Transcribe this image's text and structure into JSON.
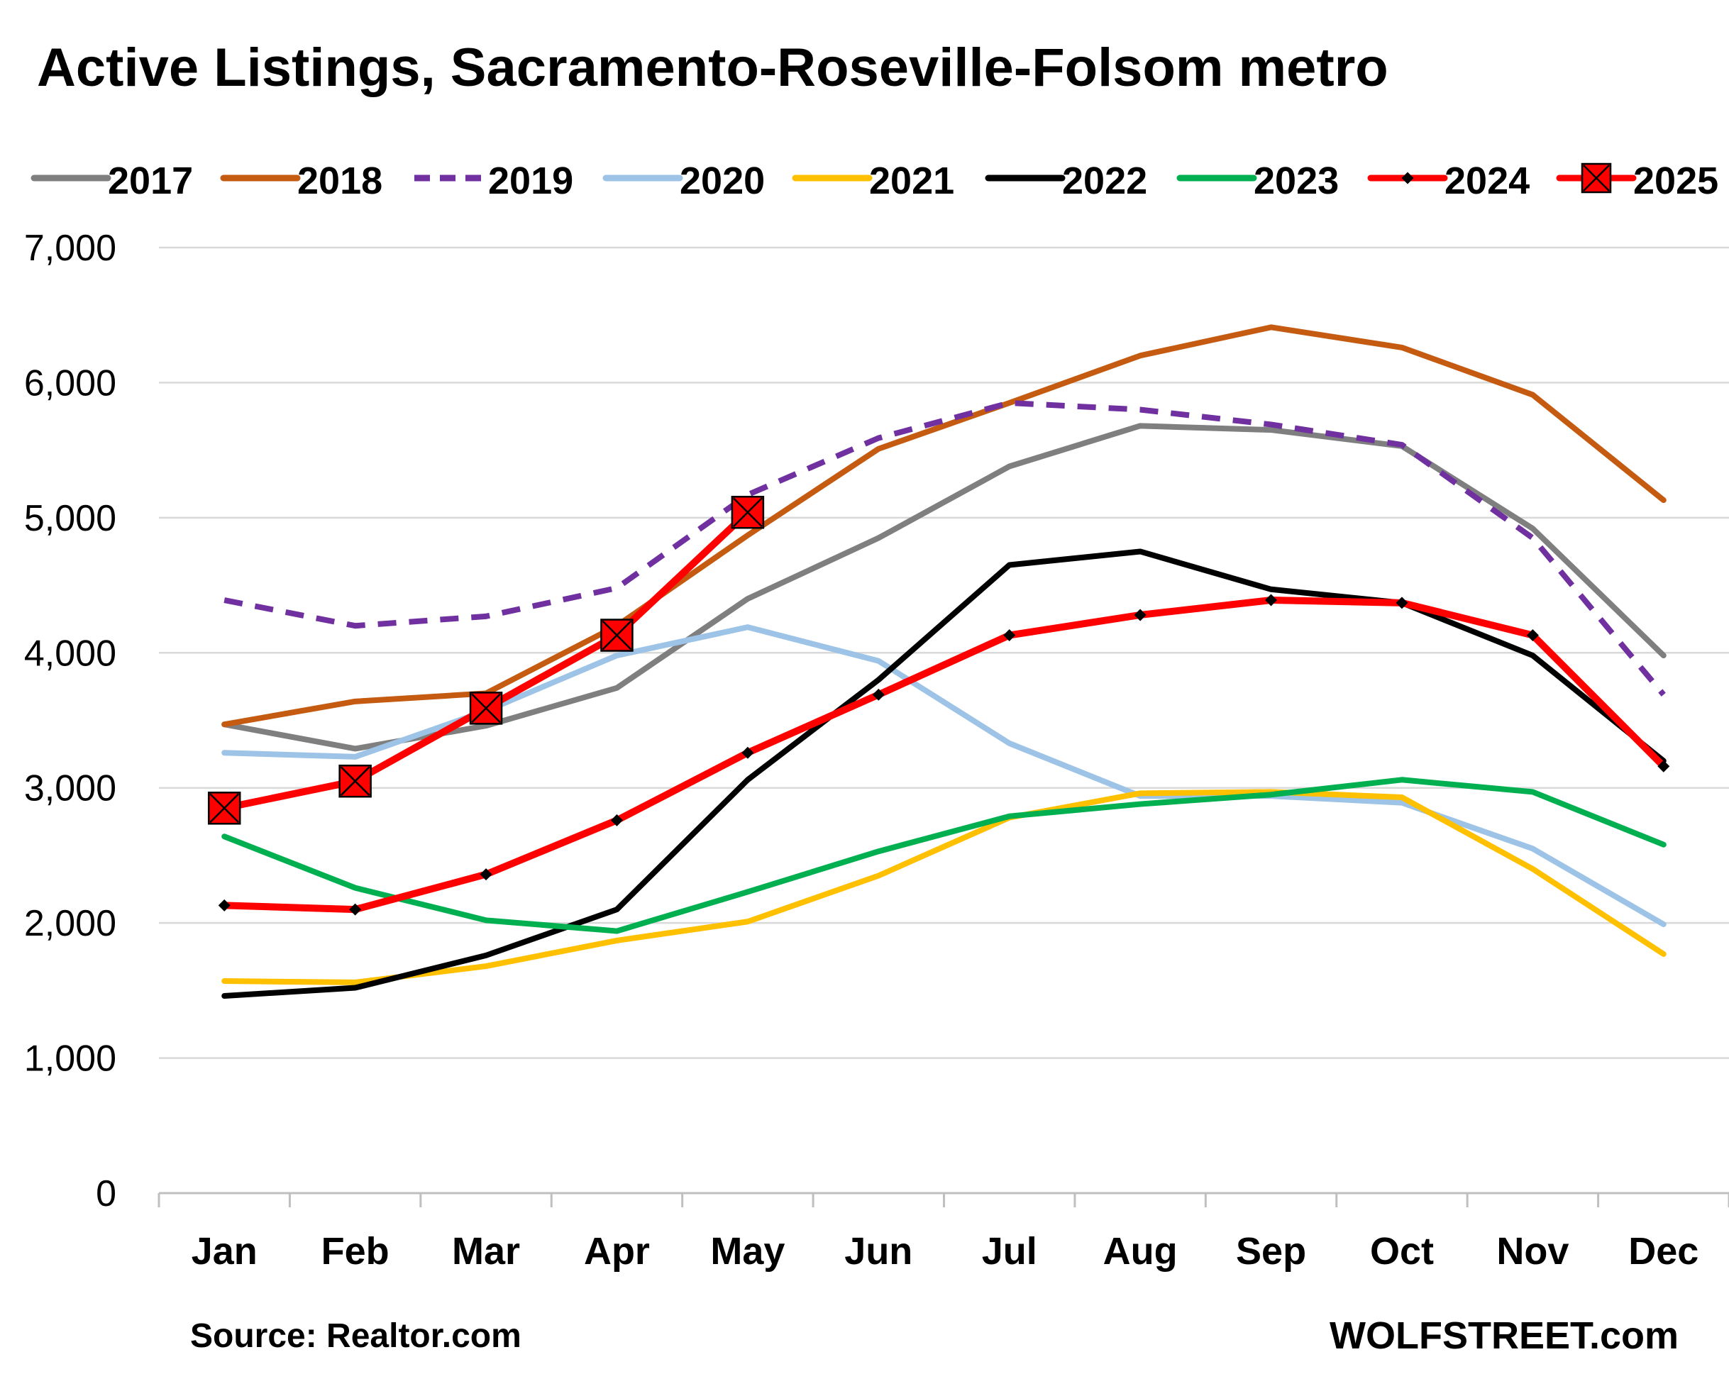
{
  "chart_data": {
    "type": "line",
    "title": "Active Listings, Sacramento-Roseville-Folsom metro",
    "xlabel": "",
    "ylabel": "",
    "ylim": [
      0,
      7000
    ],
    "yticks": [
      "0",
      "1,000",
      "2,000",
      "3,000",
      "4,000",
      "5,000",
      "6,000",
      "7,000"
    ],
    "categories": [
      "Jan",
      "Feb",
      "Mar",
      "Apr",
      "May",
      "Jun",
      "Jul",
      "Aug",
      "Sep",
      "Oct",
      "Nov",
      "Dec"
    ],
    "grid": "horizontal",
    "legend_position": "top",
    "series": [
      {
        "name": "2017",
        "color": "#7f7f7f",
        "style": "solid",
        "marker": "none",
        "values": [
          3470,
          3290,
          3460,
          3740,
          4400,
          4850,
          5380,
          5680,
          5650,
          5530,
          4920,
          3980
        ]
      },
      {
        "name": "2018",
        "color": "#c55a11",
        "style": "solid",
        "marker": "none",
        "values": [
          3470,
          3640,
          3700,
          4200,
          4870,
          5510,
          5850,
          6200,
          6410,
          6260,
          5910,
          5130
        ]
      },
      {
        "name": "2019",
        "color": "#7030a0",
        "style": "dashed",
        "marker": "none",
        "values": [
          4390,
          4200,
          4270,
          4480,
          5170,
          5590,
          5850,
          5800,
          5690,
          5540,
          4850,
          3690
        ]
      },
      {
        "name": "2020",
        "color": "#9dc3e6",
        "style": "solid",
        "marker": "none",
        "values": [
          3260,
          3230,
          3570,
          3980,
          4190,
          3940,
          3330,
          2940,
          2940,
          2890,
          2550,
          1990
        ]
      },
      {
        "name": "2021",
        "color": "#ffc000",
        "style": "solid",
        "marker": "none",
        "values": [
          1570,
          1560,
          1680,
          1870,
          2010,
          2350,
          2780,
          2960,
          2970,
          2930,
          2400,
          1770
        ]
      },
      {
        "name": "2022",
        "color": "#000000",
        "style": "solid",
        "marker": "none",
        "values": [
          1460,
          1520,
          1760,
          2100,
          3060,
          3800,
          4650,
          4750,
          4470,
          4370,
          3980,
          3200
        ]
      },
      {
        "name": "2023",
        "color": "#00b050",
        "style": "solid",
        "marker": "none",
        "values": [
          2640,
          2260,
          2020,
          1940,
          2230,
          2530,
          2790,
          2880,
          2950,
          3060,
          2970,
          2580
        ]
      },
      {
        "name": "2024",
        "color": "#ff0000",
        "style": "solid",
        "marker": "dot",
        "values": [
          2130,
          2100,
          2360,
          2760,
          3260,
          3690,
          4130,
          4280,
          4390,
          4370,
          4130,
          3160
        ]
      },
      {
        "name": "2025",
        "color": "#ff0000",
        "style": "solid",
        "marker": "boxed-x",
        "values": [
          2850,
          3050,
          3590,
          4130,
          5040,
          null,
          null,
          null,
          null,
          null,
          null,
          null
        ]
      }
    ]
  },
  "footer": {
    "source": "Source: Realtor.com",
    "brand": "WOLFSTREET.com"
  }
}
